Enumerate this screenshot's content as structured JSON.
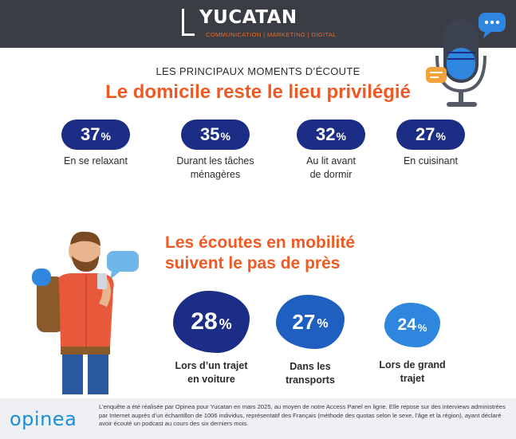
{
  "brand": {
    "name": "YUCATAN",
    "tagline": "COMMUNICATION | MARKETING | DIGITAL"
  },
  "section_home": {
    "kicker": "LES PRINCIPAUX MOMENTS D’ÉCOUTE",
    "title": "Le domicile reste le lieu privilégié",
    "stats": [
      {
        "value": "37",
        "unit": "%",
        "label_lines": [
          "En se relaxant"
        ]
      },
      {
        "value": "35",
        "unit": "%",
        "label_lines": [
          "Durant les tâches",
          "ménagères"
        ]
      },
      {
        "value": "32",
        "unit": "%",
        "label_lines": [
          "Au lit avant",
          "de dormir"
        ]
      },
      {
        "value": "27",
        "unit": "%",
        "label_lines": [
          "En cuisinant"
        ]
      }
    ]
  },
  "section_mobile": {
    "title_lines": [
      "Les écoutes en mobilité",
      "suivent le pas de près"
    ],
    "stats": [
      {
        "value": "28",
        "unit": "%",
        "label_lines": [
          "Lors d’un trajet",
          "en voiture"
        ],
        "color": "#1b2d84"
      },
      {
        "value": "27",
        "unit": "%",
        "label_lines": [
          "Dans les",
          "transports"
        ],
        "color": "#1f5fc0"
      },
      {
        "value": "24",
        "unit": "%",
        "label_lines": [
          "Lors de grand",
          "trajet"
        ],
        "color": "#2f86de"
      }
    ]
  },
  "footer": {
    "logo": "opinea",
    "note": "L’enquête a été réalisée par Opinea pour Yucatan en mars 2025, au moyen de notre Access Panel en ligne. Elle repose sur des interviews administrées par Internet auprès d’un échantillon de 1006 individus, représentatif des Français (méthode des quotas selon le sexe, l’âge et la région), ayant déclaré avoir écouté un podcast au cours des six derniers mois."
  },
  "colors": {
    "accent_orange": "#ee5a24",
    "navy": "#1b2d84",
    "header_bg": "#3a3d44"
  },
  "icons": [
    "microphone-icon",
    "chat-bubble-icon",
    "person-with-phone-illustration"
  ]
}
